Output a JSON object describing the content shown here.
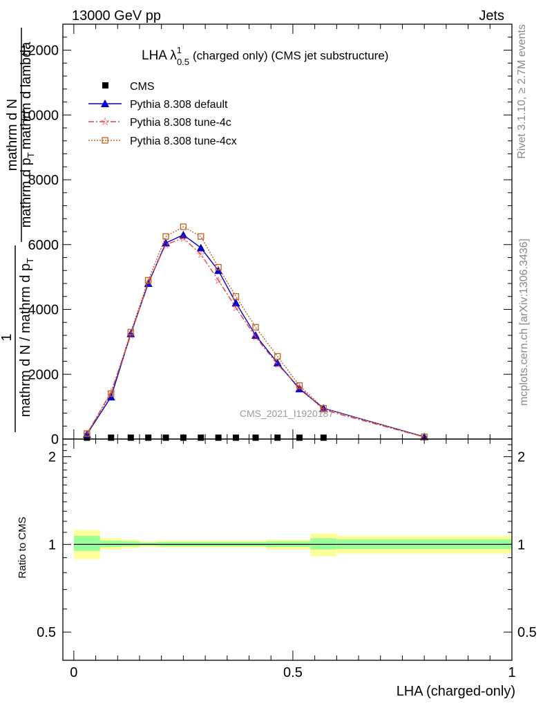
{
  "header": {
    "left": "13000 GeV pp",
    "right": "Jets"
  },
  "side_labels": {
    "rivet": "Rivet 3.1.10, ≥ 2.7M events",
    "mcplots": "mcplots.cern.ch [arXiv:1306.3436]"
  },
  "watermark": "CMS_2021_I1920187",
  "chart_data": [
    {
      "type": "line",
      "title_main": "LHA λ",
      "title_sup": "1",
      "title_sub": "0.5",
      "title_rest": "(charged only) (CMS jet substructure)",
      "ylabel_num": "mathrm d N",
      "ylabel_den": "mathrm d p",
      "ylabel_den_sub": "T",
      "ylabel_den_rest": "mathrm d lambda",
      "ylabel_prefix_num": "1",
      "ylabel_prefix_den": "mathrm d N / mathrm d p",
      "ylabel_prefix_den_sub": "T",
      "ylim": [
        0,
        12800
      ],
      "xlim": [
        -0.025,
        1.0
      ],
      "yticks": [
        {
          "value": 0,
          "label": "0"
        },
        {
          "value": 2000,
          "label": "2000"
        },
        {
          "value": 4000,
          "label": "4000"
        },
        {
          "value": 6000,
          "label": "6000"
        },
        {
          "value": 8000,
          "label": "8000"
        },
        {
          "value": 10000,
          "label": "10000"
        },
        {
          "value": 12000,
          "label": "12000"
        }
      ],
      "legend_position": "top-left",
      "series": [
        {
          "name": "CMS",
          "color": "#000000",
          "marker": "square",
          "x": [
            0.03,
            0.085,
            0.13,
            0.17,
            0.21,
            0.25,
            0.29,
            0.33,
            0.37,
            0.415,
            0.465,
            0.515,
            0.57
          ],
          "values": [
            0,
            0,
            0,
            0,
            0,
            0,
            0,
            0,
            0,
            0,
            0,
            0,
            0
          ]
        },
        {
          "name": "Pythia 8.308 default",
          "color": "#0000cc",
          "marker": "triangle",
          "x": [
            0.03,
            0.085,
            0.13,
            0.17,
            0.21,
            0.25,
            0.29,
            0.33,
            0.37,
            0.415,
            0.465,
            0.515,
            0.57,
            0.8
          ],
          "values": [
            150,
            1300,
            3250,
            4800,
            6050,
            6300,
            5900,
            5200,
            4200,
            3200,
            2350,
            1550,
            950,
            70
          ]
        },
        {
          "name": "Pythia 8.308 tune-4c",
          "color": "#e04040",
          "marker": "star",
          "x": [
            0.03,
            0.085,
            0.13,
            0.17,
            0.21,
            0.25,
            0.29,
            0.33,
            0.37,
            0.415,
            0.465,
            0.515,
            0.57,
            0.8
          ],
          "values": [
            160,
            1450,
            3200,
            4850,
            6000,
            6200,
            5700,
            4900,
            4050,
            3150,
            2300,
            1600,
            900,
            60
          ]
        },
        {
          "name": "Pythia 8.308 tune-4cx",
          "color": "#c06020",
          "marker": "open-square",
          "x": [
            0.03,
            0.085,
            0.13,
            0.17,
            0.21,
            0.25,
            0.29,
            0.33,
            0.37,
            0.415,
            0.465,
            0.515,
            0.57,
            0.8
          ],
          "values": [
            170,
            1400,
            3300,
            4900,
            6250,
            6550,
            6250,
            5300,
            4400,
            3450,
            2550,
            1650,
            950,
            70
          ]
        }
      ]
    },
    {
      "type": "area",
      "ylabel": "Ratio to CMS",
      "xlabel": "LHA (charged-only)",
      "ylim": [
        0.4,
        2.3
      ],
      "xlim": [
        -0.025,
        1.0
      ],
      "log_scale": true,
      "yticks": [
        {
          "value": 0.5,
          "label": "0.5"
        },
        {
          "value": 1,
          "label": "1"
        },
        {
          "value": 2,
          "label": "2"
        }
      ],
      "xticks": [
        {
          "value": 0,
          "label": "0"
        },
        {
          "value": 0.5,
          "label": "0.5"
        },
        {
          "value": 1,
          "label": "1"
        }
      ],
      "band_colors": {
        "outer": "#ffff99",
        "inner": "#99ff99"
      },
      "bands": [
        {
          "x0": 0.0,
          "x1": 0.06,
          "outer_lo": 0.89,
          "outer_hi": 1.12,
          "inner_lo": 0.95,
          "inner_hi": 1.07
        },
        {
          "x0": 0.06,
          "x1": 0.11,
          "outer_lo": 0.96,
          "outer_hi": 1.05,
          "inner_lo": 0.98,
          "inner_hi": 1.03
        },
        {
          "x0": 0.11,
          "x1": 0.15,
          "outer_lo": 0.97,
          "outer_hi": 1.04,
          "inner_lo": 0.985,
          "inner_hi": 1.025
        },
        {
          "x0": 0.15,
          "x1": 0.19,
          "outer_lo": 0.98,
          "outer_hi": 1.025,
          "inner_lo": 0.99,
          "inner_hi": 1.015
        },
        {
          "x0": 0.19,
          "x1": 0.44,
          "outer_lo": 0.975,
          "outer_hi": 1.03,
          "inner_lo": 0.985,
          "inner_hi": 1.02
        },
        {
          "x0": 0.44,
          "x1": 0.54,
          "outer_lo": 0.96,
          "outer_hi": 1.04,
          "inner_lo": 0.98,
          "inner_hi": 1.025
        },
        {
          "x0": 0.54,
          "x1": 0.6,
          "outer_lo": 0.91,
          "outer_hi": 1.09,
          "inner_lo": 0.96,
          "inner_hi": 1.05
        },
        {
          "x0": 0.6,
          "x1": 1.0,
          "outer_lo": 0.93,
          "outer_hi": 1.07,
          "inner_lo": 0.965,
          "inner_hi": 1.04
        }
      ]
    }
  ]
}
